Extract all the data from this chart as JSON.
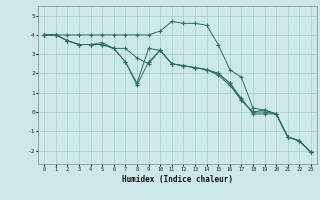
{
  "xlabel": "Humidex (Indice chaleur)",
  "bg_color": "#cce8e8",
  "grid_color": "#aacccc",
  "line_color": "#2e7060",
  "xlim": [
    -0.5,
    23.5
  ],
  "ylim": [
    -2.7,
    5.5
  ],
  "yticks": [
    -2,
    -1,
    0,
    1,
    2,
    3,
    4,
    5
  ],
  "xticks": [
    0,
    1,
    2,
    3,
    4,
    5,
    6,
    7,
    8,
    9,
    10,
    11,
    12,
    13,
    14,
    15,
    16,
    17,
    18,
    19,
    20,
    21,
    22,
    23
  ],
  "line1_x": [
    0,
    1,
    2,
    3,
    4,
    5,
    6,
    7,
    8,
    9,
    10,
    11,
    12,
    13,
    14,
    15,
    16,
    17,
    18,
    19,
    20,
    21,
    22,
    23
  ],
  "line1_y": [
    4.0,
    4.0,
    4.0,
    4.0,
    4.0,
    4.0,
    4.0,
    4.0,
    4.0,
    4.0,
    4.2,
    4.7,
    4.6,
    4.6,
    4.5,
    3.5,
    2.2,
    1.8,
    0.2,
    0.1,
    -0.1,
    -1.3,
    -1.5,
    -2.1
  ],
  "line2_x": [
    0,
    1,
    2,
    3,
    4,
    5,
    6,
    7,
    8,
    9,
    10,
    11,
    12,
    13,
    14,
    15,
    16,
    17,
    18,
    19,
    20,
    21,
    22,
    23
  ],
  "line2_y": [
    4.0,
    4.0,
    3.7,
    3.5,
    3.5,
    3.5,
    3.3,
    2.6,
    1.4,
    2.6,
    3.2,
    2.5,
    2.4,
    2.3,
    2.2,
    2.0,
    1.5,
    0.7,
    -0.1,
    -0.1,
    -0.1,
    -1.3,
    -1.5,
    -2.1
  ],
  "line3_x": [
    0,
    1,
    2,
    3,
    4,
    5,
    6,
    7,
    8,
    9,
    10,
    11,
    12,
    13,
    14,
    15,
    16,
    17,
    18,
    19,
    20,
    21,
    22,
    23
  ],
  "line3_y": [
    4.0,
    4.0,
    3.7,
    3.5,
    3.5,
    3.6,
    3.3,
    2.6,
    1.5,
    3.3,
    3.2,
    2.5,
    2.4,
    2.3,
    2.2,
    2.0,
    1.5,
    0.6,
    0.0,
    0.0,
    -0.1,
    -1.3,
    -1.5,
    -2.1
  ],
  "line4_x": [
    0,
    1,
    2,
    3,
    4,
    5,
    6,
    7,
    8,
    9,
    10,
    11,
    12,
    13,
    14,
    15,
    16,
    17,
    18,
    19,
    20,
    21,
    22,
    23
  ],
  "line4_y": [
    4.0,
    4.0,
    3.7,
    3.5,
    3.5,
    3.5,
    3.3,
    3.3,
    2.8,
    2.5,
    3.2,
    2.5,
    2.4,
    2.3,
    2.2,
    1.9,
    1.4,
    0.6,
    0.0,
    0.1,
    -0.1,
    -1.3,
    -1.5,
    -2.1
  ]
}
